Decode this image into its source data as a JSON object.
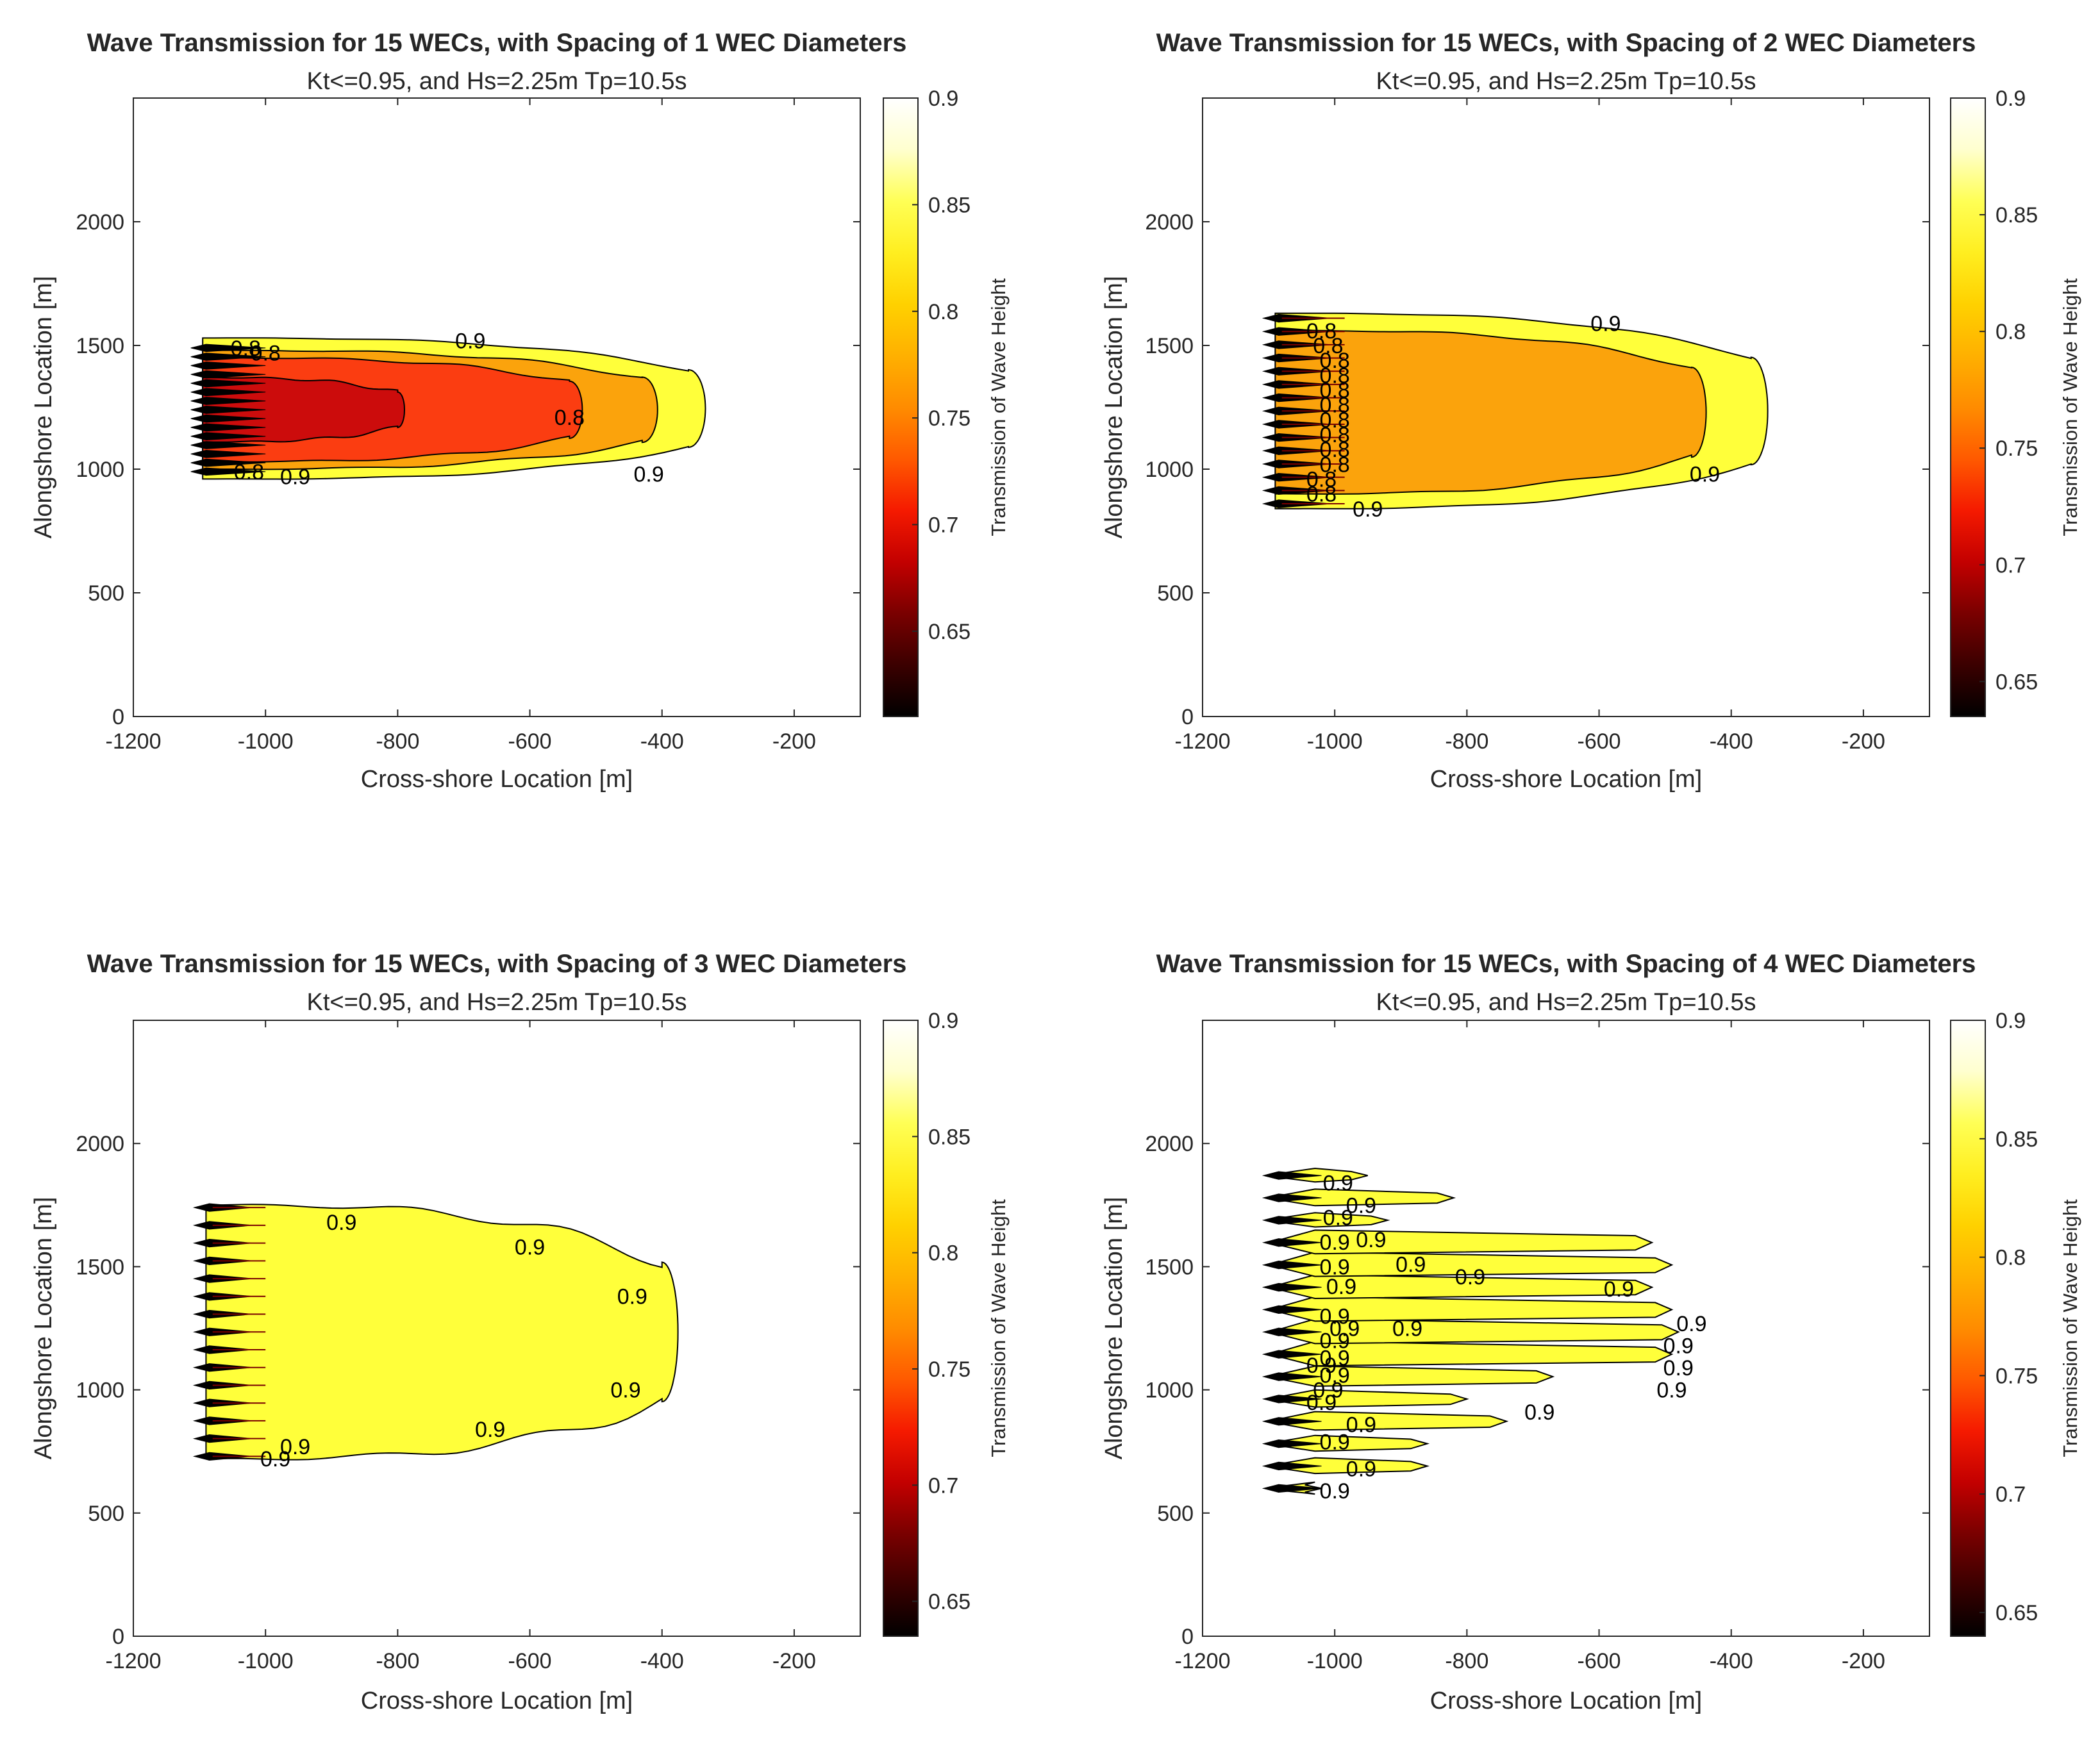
{
  "figure": {
    "colormap": [
      "#000000",
      "#3b0000",
      "#7a0000",
      "#c30000",
      "#f51a00",
      "#ff5a00",
      "#ff8c00",
      "#ffb000",
      "#ffd100",
      "#ffee20",
      "#ffff55",
      "#ffffcf",
      "#ffffff"
    ],
    "colors": {
      "k_lt_075": "#cc0c0c",
      "k_075_080": "#fb3d11",
      "k_080_085": "#fba30c",
      "k_085_090": "#ffff3a",
      "contour_line": "#000000",
      "axis": "#262626"
    }
  },
  "chart_data": [
    {
      "type": "contour",
      "title": "Wave Transmission for 15 WECs, with Spacing of 1 WEC Diameters",
      "subtitle": "Kt<=0.95, and Hs=2.25m Tp=10.5s",
      "xlabel": "Cross-shore Location [m]",
      "ylabel": "Alongshore Location [m]",
      "colorbar_label": "Transmission of Wave Height",
      "xlim": [
        -1200,
        -100
      ],
      "ylim": [
        0,
        2500
      ],
      "xticks": [
        -1200,
        -1000,
        -800,
        -600,
        -400,
        -200
      ],
      "yticks": [
        0,
        500,
        1000,
        1500,
        2000
      ],
      "clim": [
        0.61,
        0.9
      ],
      "cticks": [
        0.65,
        0.7,
        0.75,
        0.8,
        0.85,
        0.9
      ],
      "wec_count": 15,
      "array_x": -1095,
      "array_y_range": [
        990,
        1490
      ],
      "regions": [
        {
          "level": 0.9,
          "x_extent": -360,
          "y_range": [
            960,
            1530
          ]
        },
        {
          "level": 0.85,
          "x_extent": -430,
          "y_range": [
            1000,
            1480
          ]
        },
        {
          "level": 0.8,
          "x_extent": -540,
          "y_range": [
            1030,
            1450
          ]
        },
        {
          "level": 0.75,
          "x_extent": -800,
          "y_range": [
            1110,
            1370
          ]
        }
      ],
      "contour_labels": [
        {
          "text": "0.9",
          "x": -690,
          "y": 1520
        },
        {
          "text": "0.8",
          "x": -1030,
          "y": 1490
        },
        {
          "text": "0.8",
          "x": -1000,
          "y": 1470
        },
        {
          "text": "0.8",
          "x": -540,
          "y": 1210
        },
        {
          "text": "0.8",
          "x": -1025,
          "y": 990
        },
        {
          "text": "0.9",
          "x": -955,
          "y": 970
        },
        {
          "text": "0.9",
          "x": -420,
          "y": 980
        }
      ]
    },
    {
      "type": "contour",
      "title": "Wave Transmission for 15 WECs, with Spacing of 2 WEC Diameters",
      "subtitle": "Kt<=0.95, and Hs=2.25m Tp=10.5s",
      "xlabel": "Cross-shore Location [m]",
      "ylabel": "Alongshore Location [m]",
      "colorbar_label": "Transmission of Wave Height",
      "xlim": [
        -1200,
        -100
      ],
      "ylim": [
        0,
        2500
      ],
      "xticks": [
        -1200,
        -1000,
        -800,
        -600,
        -400,
        -200
      ],
      "yticks": [
        0,
        500,
        1000,
        1500,
        2000
      ],
      "clim": [
        0.635,
        0.9
      ],
      "cticks": [
        0.65,
        0.7,
        0.75,
        0.8,
        0.85,
        0.9
      ],
      "wec_count": 15,
      "array_x": -1090,
      "array_y_range": [
        860,
        1610
      ],
      "regions": [
        {
          "level": 0.9,
          "x_extent": -370,
          "y_range": [
            840,
            1630
          ]
        },
        {
          "level": 0.85,
          "x_extent": -460,
          "y_range": [
            900,
            1560
          ]
        }
      ],
      "contour_labels": [
        {
          "text": "0.9",
          "x": -590,
          "y": 1590
        },
        {
          "text": "0.8",
          "x": -1020,
          "y": 1560
        },
        {
          "text": "0.8",
          "x": -1010,
          "y": 1500
        },
        {
          "text": "0.8",
          "x": -1000,
          "y": 1440
        },
        {
          "text": "0.8",
          "x": -1000,
          "y": 1380
        },
        {
          "text": "0.8",
          "x": -1000,
          "y": 1320
        },
        {
          "text": "0.8",
          "x": -1000,
          "y": 1260
        },
        {
          "text": "0.8",
          "x": -1000,
          "y": 1200
        },
        {
          "text": "0.8",
          "x": -1000,
          "y": 1140
        },
        {
          "text": "0.8",
          "x": -1000,
          "y": 1080
        },
        {
          "text": "0.8",
          "x": -1000,
          "y": 1020
        },
        {
          "text": "0.8",
          "x": -1020,
          "y": 960
        },
        {
          "text": "0.8",
          "x": -1020,
          "y": 900
        },
        {
          "text": "0.9",
          "x": -950,
          "y": 840
        },
        {
          "text": "0.9",
          "x": -440,
          "y": 980
        }
      ]
    },
    {
      "type": "contour",
      "title": "Wave Transmission for 15 WECs, with Spacing of 3 WEC Diameters",
      "subtitle": "Kt<=0.95, and Hs=2.25m Tp=10.5s",
      "xlabel": "Cross-shore Location [m]",
      "ylabel": "Alongshore Location [m]",
      "colorbar_label": "Transmission of Wave Height",
      "xlim": [
        -1200,
        -100
      ],
      "ylim": [
        0,
        2500
      ],
      "xticks": [
        -1200,
        -1000,
        -800,
        -600,
        -400,
        -200
      ],
      "yticks": [
        0,
        500,
        1000,
        1500,
        2000
      ],
      "clim": [
        0.635,
        0.9
      ],
      "cticks": [
        0.65,
        0.7,
        0.75,
        0.8,
        0.85,
        0.9
      ],
      "wec_count": 15,
      "array_x": -1090,
      "array_y_range": [
        730,
        1740
      ],
      "regions": [
        {
          "level": 0.9,
          "x_extent": -400,
          "y_range": [
            720,
            1750
          ]
        }
      ],
      "contour_labels": [
        {
          "text": "0.9",
          "x": -885,
          "y": 1680
        },
        {
          "text": "0.9",
          "x": -600,
          "y": 1580
        },
        {
          "text": "0.9",
          "x": -445,
          "y": 1380
        },
        {
          "text": "0.9",
          "x": -455,
          "y": 1000
        },
        {
          "text": "0.9",
          "x": -660,
          "y": 840
        },
        {
          "text": "0.9",
          "x": -955,
          "y": 770
        },
        {
          "text": "0.9",
          "x": -985,
          "y": 720
        }
      ]
    },
    {
      "type": "contour",
      "title": "Wave Transmission for 15 WECs, with Spacing of 4 WEC Diameters",
      "subtitle": "Kt<=0.95, and Hs=2.25m Tp=10.5s",
      "xlabel": "Cross-shore Location [m]",
      "ylabel": "Alongshore Location [m]",
      "colorbar_label": "Transmission of Wave Height",
      "xlim": [
        -1200,
        -100
      ],
      "ylim": [
        0,
        2500
      ],
      "xticks": [
        -1200,
        -1000,
        -800,
        -600,
        -400,
        -200
      ],
      "yticks": [
        0,
        500,
        1000,
        1500,
        2000
      ],
      "clim": [
        0.64,
        0.9
      ],
      "cticks": [
        0.65,
        0.7,
        0.75,
        0.8,
        0.85,
        0.9
      ],
      "wec_count": 15,
      "array_x": -1090,
      "array_y_range": [
        600,
        1870
      ],
      "wake_extents_x": [
        -1020,
        -860,
        -860,
        -740,
        -800,
        -670,
        -490,
        -480,
        -490,
        -520,
        -490,
        -520,
        -920,
        -820,
        -950
      ],
      "contour_labels": [
        {
          "text": "0.9",
          "x": -995,
          "y": 1840
        },
        {
          "text": "0.9",
          "x": -960,
          "y": 1750
        },
        {
          "text": "0.9",
          "x": -995,
          "y": 1700
        },
        {
          "text": "0.9",
          "x": -945,
          "y": 1610
        },
        {
          "text": "0.9",
          "x": -1000,
          "y": 1600
        },
        {
          "text": "0.9",
          "x": -1000,
          "y": 1500
        },
        {
          "text": "0.9",
          "x": -885,
          "y": 1510
        },
        {
          "text": "0.9",
          "x": -795,
          "y": 1460
        },
        {
          "text": "0.9",
          "x": -990,
          "y": 1420
        },
        {
          "text": "0.9",
          "x": -570,
          "y": 1410
        },
        {
          "text": "0.9",
          "x": -1000,
          "y": 1300
        },
        {
          "text": "0.9",
          "x": -985,
          "y": 1250
        },
        {
          "text": "0.9",
          "x": -890,
          "y": 1250
        },
        {
          "text": "0.9",
          "x": -1000,
          "y": 1200
        },
        {
          "text": "0.9",
          "x": -1000,
          "y": 1130
        },
        {
          "text": "0.9",
          "x": -1020,
          "y": 1100
        },
        {
          "text": "0.9",
          "x": -1000,
          "y": 1060
        },
        {
          "text": "0.9",
          "x": -1010,
          "y": 1000
        },
        {
          "text": "0.9",
          "x": -1020,
          "y": 950
        },
        {
          "text": "0.9",
          "x": -460,
          "y": 1270
        },
        {
          "text": "0.9",
          "x": -480,
          "y": 1180
        },
        {
          "text": "0.9",
          "x": -480,
          "y": 1090
        },
        {
          "text": "0.9",
          "x": -490,
          "y": 1000
        },
        {
          "text": "0.9",
          "x": -690,
          "y": 910
        },
        {
          "text": "0.9",
          "x": -960,
          "y": 860
        },
        {
          "text": "0.9",
          "x": -1000,
          "y": 790
        },
        {
          "text": "0.9",
          "x": -960,
          "y": 680
        },
        {
          "text": "0.9",
          "x": -1000,
          "y": 590
        }
      ]
    }
  ]
}
